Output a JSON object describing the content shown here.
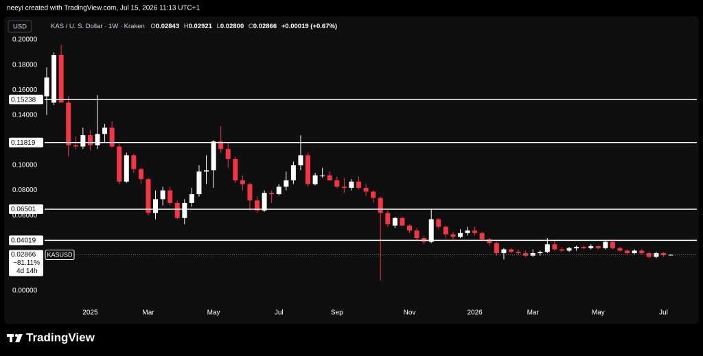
{
  "top_note": "neeyi created with TradingView.com, Jul 15, 2026 11:13 UTC+1",
  "footer": {
    "brand": "TradingView"
  },
  "chart_data": {
    "type": "candlestick",
    "currency": "USD",
    "title": "KAS / U. S. Dollar · 1W · Kraken",
    "ohlc": [
      {
        "key": "O",
        "value": "0.02843"
      },
      {
        "key": "H",
        "value": "0.02921"
      },
      {
        "key": "L",
        "value": "0.02800"
      },
      {
        "key": "C",
        "value": "0.02866"
      }
    ],
    "change": "+0.00019 (+0.67%)",
    "up_color": "#ffffff",
    "down_color": "#f23645",
    "level_color": "#ffffff",
    "categories": [
      null,
      null,
      null,
      null,
      null,
      null,
      "2025",
      null,
      null,
      null,
      null,
      null,
      null,
      null,
      "Mar",
      null,
      null,
      null,
      null,
      null,
      null,
      null,
      null,
      "May",
      null,
      null,
      null,
      null,
      null,
      null,
      null,
      null,
      "Jul",
      null,
      null,
      null,
      null,
      null,
      null,
      null,
      "Sep",
      null,
      null,
      null,
      null,
      null,
      null,
      null,
      null,
      null,
      "Nov",
      null,
      null,
      null,
      null,
      null,
      null,
      null,
      null,
      "2026",
      null,
      null,
      null,
      null,
      null,
      null,
      null,
      "Mar",
      null,
      null,
      null,
      null,
      null,
      null,
      null,
      null,
      "May",
      null,
      null,
      null,
      null,
      null,
      null,
      null,
      null,
      "Jul",
      null
    ],
    "open": [
      0.155,
      0.15,
      0.188,
      0.15,
      0.116,
      0.115,
      0.124,
      0.116,
      0.125,
      0.13,
      0.115,
      0.087,
      0.108,
      0.097,
      0.089,
      0.062,
      0.073,
      0.08,
      0.07,
      0.058,
      0.07,
      0.077,
      0.095,
      0.096,
      0.119,
      0.113,
      0.105,
      0.088,
      0.085,
      0.072,
      0.064,
      0.078,
      0.077,
      0.083,
      0.088,
      0.1,
      0.108,
      0.085,
      0.092,
      0.092,
      0.088,
      0.083,
      0.082,
      0.087,
      0.082,
      0.079,
      0.074,
      0.062,
      0.052,
      0.058,
      0.052,
      0.048,
      0.042,
      0.039,
      0.057,
      0.051,
      0.045,
      0.043,
      0.046,
      0.048,
      0.046,
      0.041,
      0.038,
      0.03,
      0.033,
      0.031,
      0.03,
      0.028,
      0.03,
      0.031,
      0.037,
      0.033,
      0.032,
      0.034,
      0.035,
      0.034,
      0.0355,
      0.034,
      0.039,
      0.034,
      0.032,
      0.03,
      0.032,
      0.03,
      0.027,
      0.03,
      0.02843
    ],
    "high": [
      0.178,
      0.19,
      0.196,
      0.155,
      0.123,
      0.13,
      0.128,
      0.156,
      0.133,
      0.135,
      0.117,
      0.11,
      0.109,
      0.098,
      0.09,
      0.08,
      0.083,
      0.083,
      0.072,
      0.073,
      0.082,
      0.1,
      0.108,
      0.12,
      0.131,
      0.118,
      0.107,
      0.092,
      0.086,
      0.075,
      0.08,
      0.08,
      0.085,
      0.095,
      0.103,
      0.124,
      0.11,
      0.094,
      0.098,
      0.095,
      0.091,
      0.09,
      0.089,
      0.091,
      0.085,
      0.08,
      0.075,
      0.064,
      0.059,
      0.059,
      0.053,
      0.05,
      0.044,
      0.065,
      0.058,
      0.052,
      0.047,
      0.049,
      0.051,
      0.051,
      0.047,
      0.042,
      0.039,
      0.034,
      0.034,
      0.033,
      0.032,
      0.033,
      0.032,
      0.042,
      0.04,
      0.035,
      0.035,
      0.036,
      0.036,
      0.037,
      0.036,
      0.04,
      0.04,
      0.035,
      0.033,
      0.033,
      0.033,
      0.031,
      0.031,
      0.031,
      0.02921
    ],
    "low": [
      0.14,
      0.148,
      0.15,
      0.107,
      0.113,
      0.113,
      0.112,
      0.113,
      0.118,
      0.114,
      0.085,
      0.086,
      0.094,
      0.085,
      0.06,
      0.057,
      0.068,
      0.068,
      0.057,
      0.053,
      0.067,
      0.075,
      0.085,
      0.082,
      0.11,
      0.098,
      0.086,
      0.08,
      0.064,
      0.062,
      0.063,
      0.07,
      0.076,
      0.08,
      0.085,
      0.096,
      0.083,
      0.084,
      0.09,
      0.088,
      0.082,
      0.078,
      0.08,
      0.081,
      0.076,
      0.07,
      0.008,
      0.051,
      0.05,
      0.052,
      0.046,
      0.04,
      0.037,
      0.038,
      0.049,
      0.042,
      0.041,
      0.042,
      0.044,
      0.044,
      0.04,
      0.036,
      0.028,
      0.025,
      0.03,
      0.029,
      0.027,
      0.027,
      0.028,
      0.03,
      0.032,
      0.031,
      0.031,
      0.032,
      0.033,
      0.033,
      0.033,
      0.033,
      0.033,
      0.031,
      0.029,
      0.029,
      0.029,
      0.026,
      0.026,
      0.027,
      0.028
    ],
    "close": [
      0.17,
      0.188,
      0.15,
      0.116,
      0.115,
      0.124,
      0.116,
      0.125,
      0.13,
      0.115,
      0.087,
      0.108,
      0.097,
      0.089,
      0.062,
      0.073,
      0.08,
      0.07,
      0.058,
      0.07,
      0.077,
      0.095,
      0.096,
      0.119,
      0.113,
      0.105,
      0.088,
      0.085,
      0.072,
      0.064,
      0.078,
      0.077,
      0.083,
      0.088,
      0.1,
      0.108,
      0.085,
      0.092,
      0.092,
      0.088,
      0.083,
      0.082,
      0.087,
      0.082,
      0.079,
      0.074,
      0.062,
      0.053,
      0.058,
      0.052,
      0.048,
      0.042,
      0.039,
      0.057,
      0.051,
      0.045,
      0.043,
      0.046,
      0.048,
      0.046,
      0.041,
      0.038,
      0.03,
      0.033,
      0.031,
      0.03,
      0.028,
      0.03,
      0.031,
      0.037,
      0.033,
      0.032,
      0.034,
      0.035,
      0.034,
      0.0355,
      0.034,
      0.039,
      0.034,
      0.032,
      0.03,
      0.032,
      0.03,
      0.027,
      0.03,
      0.02847,
      0.02866
    ],
    "ylim": [
      -0.0077,
      0.2044
    ],
    "yticks": [
      {
        "value": 0.2,
        "label": "0.20000"
      },
      {
        "value": 0.18,
        "label": "0.18000"
      },
      {
        "value": 0.16,
        "label": "0.16000"
      },
      {
        "value": 0.14,
        "label": "0.14000"
      },
      {
        "value": 0.1,
        "label": "0.10000"
      },
      {
        "value": 0.08,
        "label": "0.08000"
      },
      {
        "value": 0.06,
        "label": "0.06000"
      },
      {
        "value": 0,
        "label": "0.00000"
      }
    ],
    "levels": [
      {
        "value": 0.15238,
        "label": "0.15238"
      },
      {
        "value": 0.11819,
        "label": "0.11819"
      },
      {
        "value": 0.06501,
        "label": "0.06501"
      },
      {
        "value": 0.04019,
        "label": "0.04019"
      }
    ],
    "last_price": {
      "value": 0.02866,
      "label": "0.02866",
      "change_pct": "−81.11%",
      "countdown": "4d 14h",
      "symbol": "KASUSD"
    }
  }
}
